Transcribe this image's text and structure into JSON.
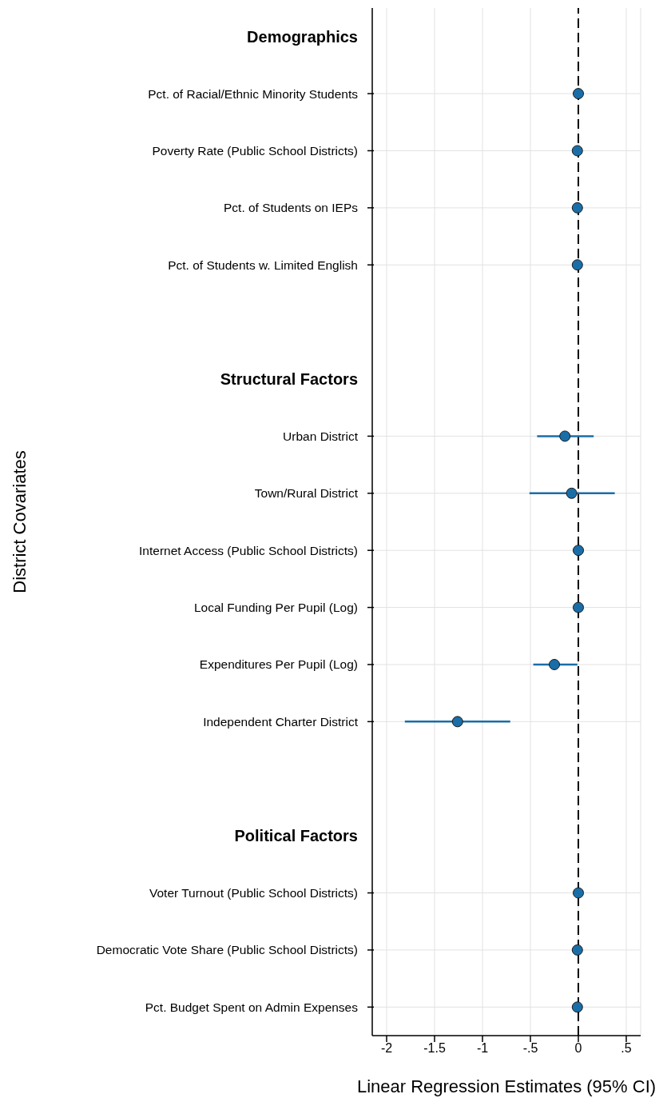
{
  "chart_data": {
    "type": "scatter",
    "xlabel": "Linear Regression Estimates (95% CI)",
    "ylabel": "District Covariates",
    "categories": [
      "Demographics",
      "Pct. of Racial/Ethnic Minority Students",
      "Poverty Rate (Public School Districts)",
      "Pct. of Students on IEPs",
      "Pct. of Students w. Limited English",
      null,
      "Structural Factors",
      "Urban District",
      "Town/Rural District",
      "Internet Access (Public School Districts)",
      "Local Funding Per Pupil (Log)",
      "Expenditures Per Pupil (Log)",
      "Independent Charter District",
      null,
      "Political Factors",
      "Voter Turnout (Public School Districts)",
      "Democratic Vote Share (Public School Districts)",
      "Pct. Budget Spent on Admin Expenses"
    ],
    "values": [
      null,
      0,
      -0.01,
      -0.01,
      -0.01,
      null,
      null,
      -0.14,
      -0.07,
      0,
      0,
      -0.25,
      -1.26,
      null,
      null,
      0,
      -0.01,
      -0.01
    ],
    "errors": [
      null,
      null,
      null,
      null,
      null,
      null,
      null,
      [
        -0.43,
        0.16
      ],
      [
        -0.51,
        0.38
      ],
      null,
      null,
      [
        -0.47,
        -0.01
      ],
      [
        -1.81,
        -0.71
      ],
      null,
      null,
      null,
      null,
      null
    ],
    "color": "#1a6ea8",
    "marker": "circle",
    "grid": true,
    "orientation": "horizontal",
    "xlim": [
      -2.15,
      0.65
    ],
    "xticks": [
      -2,
      {
        "value": -1.5,
        "label": "-1.5"
      },
      -1,
      {
        "value": -0.5,
        "label": "-.5"
      },
      0,
      {
        "value": 0.5,
        "label": ".5"
      }
    ],
    "ref_lines": [
      {
        "axis": "x",
        "value": 0,
        "color": "#000000",
        "line_style": "dashed"
      }
    ]
  }
}
